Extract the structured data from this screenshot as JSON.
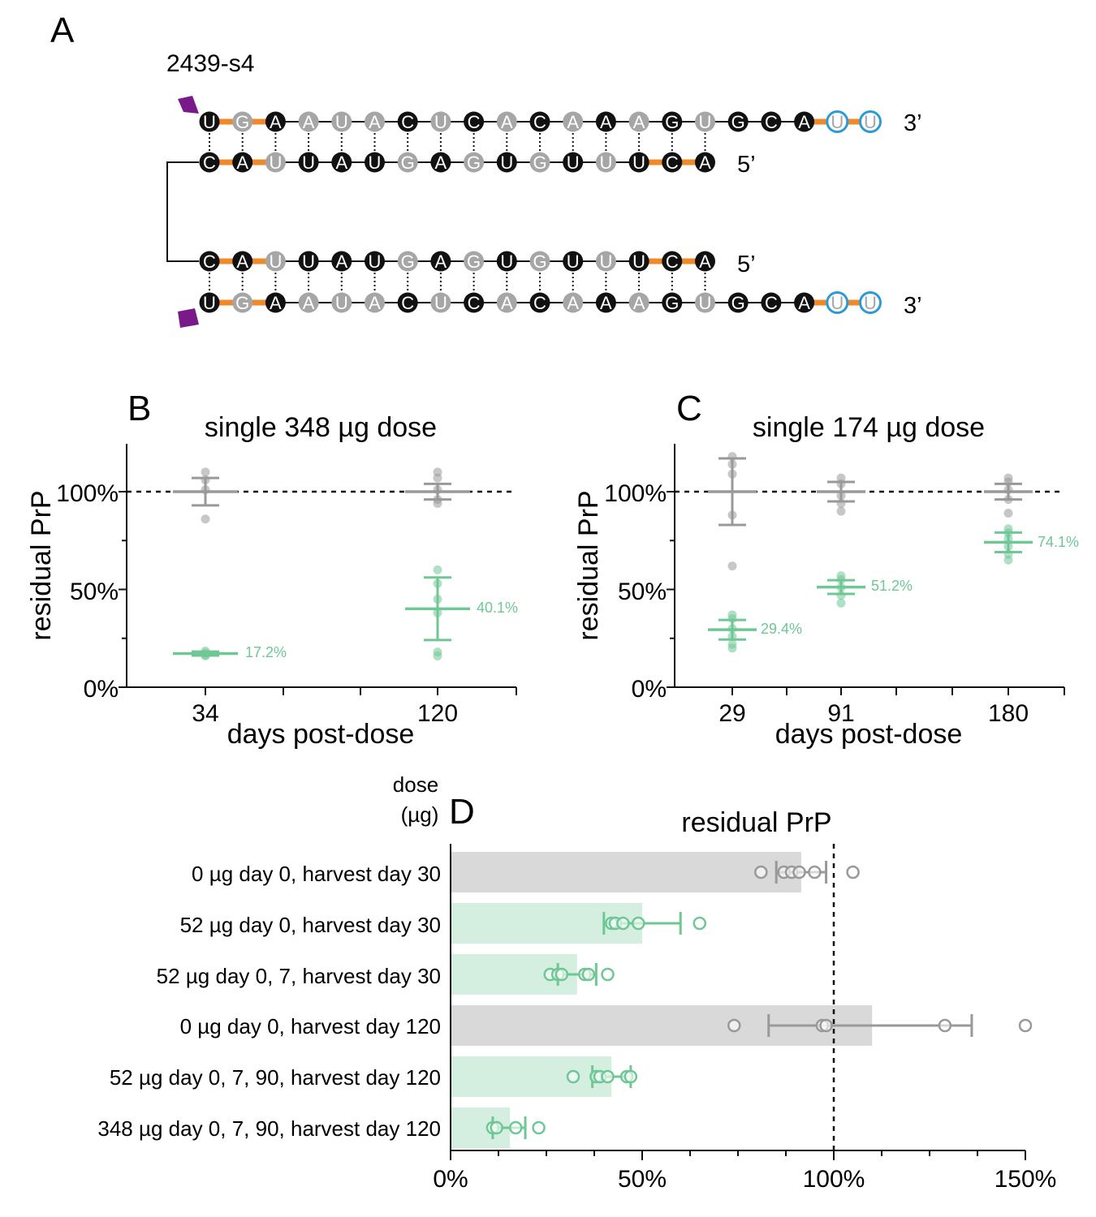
{
  "colors": {
    "control": "#999999",
    "treated": "#6fc795",
    "control_bar": "#d9d9d9",
    "treated_bar": "#d4eedf",
    "backbone": "#f0892a",
    "cap": "#7a1a8a",
    "overhang_ring": "#2d9ad6",
    "dark_base": "#111111",
    "light_base": "#a6a6a6"
  },
  "panel_a": {
    "letter": "A",
    "name": "2439-s4",
    "end_3": "3’",
    "end_5": "5’",
    "guide": {
      "bases": [
        "U",
        "G",
        "A",
        "A",
        "U",
        "A",
        "C",
        "U",
        "C",
        "A",
        "C",
        "A",
        "A",
        "A",
        "G",
        "U",
        "G",
        "C",
        "A",
        "U",
        "U"
      ],
      "modification": [
        "d",
        "l",
        "d",
        "l",
        "l",
        "l",
        "d",
        "l",
        "d",
        "l",
        "d",
        "l",
        "d",
        "l",
        "d",
        "l",
        "d",
        "d",
        "d",
        "r",
        "r"
      ],
      "backbone_links": [
        "o",
        "o",
        "k",
        "k",
        "k",
        "k",
        "k",
        "k",
        "k",
        "k",
        "k",
        "k",
        "k",
        "k",
        "k",
        "k",
        "k",
        "k",
        "o",
        "o"
      ]
    },
    "passenger": {
      "bases": [
        "C",
        "A",
        "U",
        "U",
        "A",
        "U",
        "G",
        "A",
        "G",
        "U",
        "G",
        "U",
        "U",
        "U",
        "C",
        "A"
      ],
      "modification": [
        "d",
        "d",
        "l",
        "d",
        "d",
        "d",
        "l",
        "d",
        "l",
        "d",
        "l",
        "d",
        "l",
        "d",
        "d",
        "d"
      ],
      "backbone_links": [
        "o",
        "o",
        "k",
        "k",
        "k",
        "k",
        "k",
        "k",
        "k",
        "k",
        "k",
        "k",
        "k",
        "o",
        "o"
      ]
    }
  },
  "panels": [
    {
      "letter": "B",
      "title": "single 348 µg dose",
      "ylabel": "residual PrP",
      "xlabel": "days post-dose",
      "y_ticks": [
        "0%",
        "50%",
        "100%"
      ],
      "x_ticks": [
        "34",
        "120"
      ],
      "annotations": [
        "17.2%",
        "40.1%"
      ]
    },
    {
      "letter": "C",
      "title": "single 174 µg dose",
      "ylabel": "residual PrP",
      "xlabel": "days post-dose",
      "y_ticks": [
        "0%",
        "50%",
        "100%"
      ],
      "x_ticks": [
        "29",
        "91",
        "180"
      ],
      "annotations": [
        "29.4%",
        "51.2%",
        "74.1%"
      ]
    },
    {
      "letter": "D",
      "title": "residual PrP",
      "axis_header": [
        "dose",
        "(µg)"
      ],
      "x_ticks": [
        "0%",
        "50%",
        "100%",
        "150%"
      ],
      "row_labels": [
        "0 µg day 0, harvest day 30",
        "52 µg day 0, harvest day 30",
        "52 µg day 0, 7, harvest day 30",
        "0 µg day 0, harvest day 120",
        "52 µg day 0, 7, 90, harvest day 120",
        "348 µg day 0, 7, 90, harvest day 120"
      ]
    }
  ],
  "chart_data": [
    {
      "panel": "B",
      "type": "scatter",
      "ylim": [
        0,
        125
      ],
      "reference_line": 100,
      "categories": [
        "34",
        "120"
      ],
      "series": [
        {
          "group": "control",
          "mean": [
            100,
            100
          ],
          "sd": [
            7,
            4
          ],
          "points": [
            [
              110,
              106,
              101,
              86
            ],
            [
              110,
              107,
              101,
              96,
              94
            ]
          ]
        },
        {
          "group": "treated",
          "mean": [
            17.2,
            40.1
          ],
          "sd": [
            1,
            16
          ],
          "points": [
            [
              18.5,
              17.5,
              16.5,
              16
            ],
            [
              60,
              53,
              45,
              38,
              18,
              16
            ]
          ],
          "labels": [
            "17.2%",
            "40.1%"
          ]
        }
      ]
    },
    {
      "panel": "C",
      "type": "scatter",
      "ylim": [
        0,
        125
      ],
      "reference_line": 100,
      "categories": [
        "29",
        "91",
        "180"
      ],
      "series": [
        {
          "group": "control",
          "mean": [
            100,
            100,
            100
          ],
          "sd": [
            17,
            5,
            4
          ],
          "points": [
            [
              118,
              114,
              109,
              88,
              62
            ],
            [
              107,
              104,
              98,
              94,
              90
            ],
            [
              107,
              105,
              101,
              96,
              89
            ]
          ]
        },
        {
          "group": "treated",
          "mean": [
            29.4,
            51.2,
            74.1
          ],
          "sd": [
            5,
            3.5,
            5
          ],
          "points": [
            [
              37,
              35,
              30,
              26,
              22,
              20
            ],
            [
              57,
              55,
              51,
              47,
              43
            ],
            [
              81,
              79,
              76,
              72,
              68,
              65
            ]
          ],
          "labels": [
            "29.4%",
            "51.2%",
            "74.1%"
          ]
        }
      ]
    },
    {
      "panel": "D",
      "type": "bar",
      "orientation": "horizontal",
      "xlim": [
        0,
        150
      ],
      "reference_line": 100,
      "categories": [
        "0 µg day 0, harvest day 30",
        "52 µg day 0, harvest day 30",
        "52 µg day 0, 7, harvest day 30",
        "0 µg day 0, harvest day 120",
        "52 µg day 0, 7, 90, harvest day 120",
        "348 µg day 0, 7, 90, harvest day 120"
      ],
      "group": [
        "control",
        "treated",
        "treated",
        "control",
        "treated",
        "treated"
      ],
      "values": [
        91.5,
        50,
        33,
        110,
        42,
        15.5
      ],
      "error": [
        [
          85,
          98
        ],
        [
          40,
          60
        ],
        [
          28,
          38
        ],
        [
          83,
          136
        ],
        [
          37,
          47
        ],
        [
          11,
          19.5
        ]
      ],
      "points": [
        [
          81,
          87,
          89,
          91,
          95,
          105
        ],
        [
          42,
          43,
          45,
          49,
          65
        ],
        [
          26,
          28,
          29,
          35,
          36,
          41
        ],
        [
          74,
          97,
          98,
          129,
          150
        ],
        [
          32,
          38,
          39,
          41,
          46,
          47
        ],
        [
          11,
          12,
          17,
          23
        ]
      ]
    }
  ]
}
